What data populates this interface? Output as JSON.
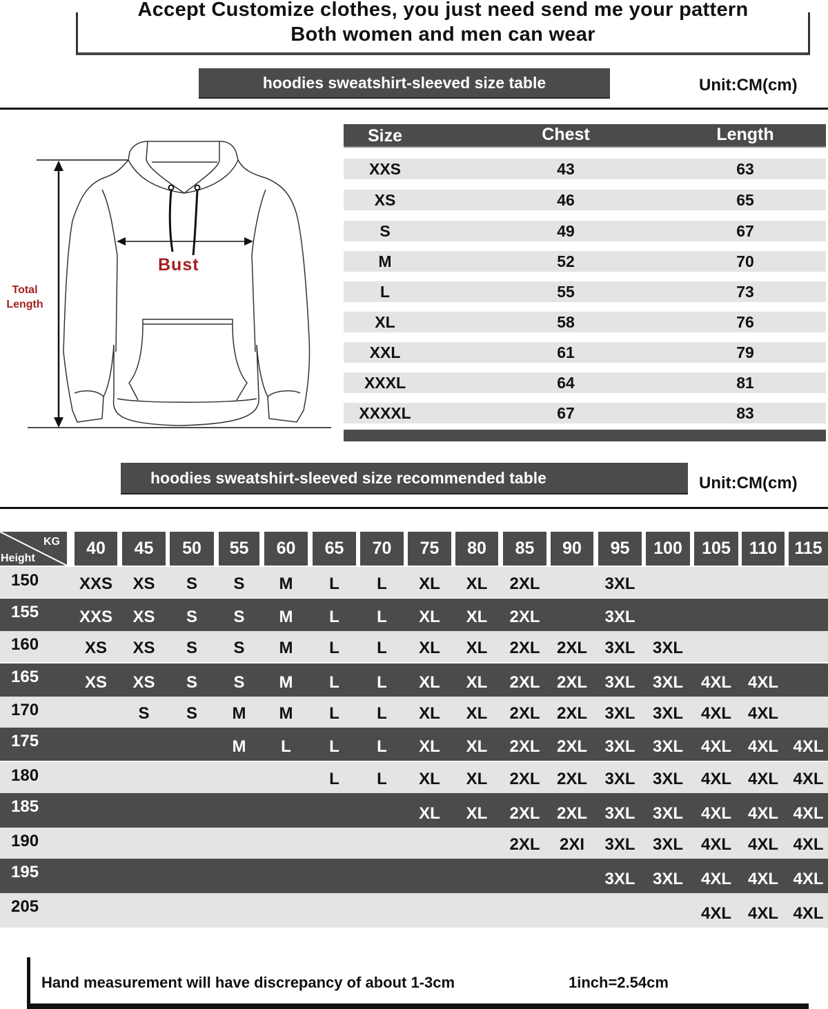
{
  "header": {
    "line1": "Accept Customize clothes, you just need send me your pattern",
    "line2": "Both women and men can wear"
  },
  "size_table": {
    "title": "hoodies sweatshirt-sleeved size  table",
    "unit": "Unit:CM(cm)",
    "columns": [
      "Size",
      "Chest",
      "Length"
    ],
    "rows": [
      [
        "XXS",
        "43",
        "63"
      ],
      [
        "XS",
        "46",
        "65"
      ],
      [
        "S",
        "49",
        "67"
      ],
      [
        "M",
        "52",
        "70"
      ],
      [
        "L",
        "55",
        "73"
      ],
      [
        "XL",
        "58",
        "76"
      ],
      [
        "XXL",
        "61",
        "79"
      ],
      [
        "XXXL",
        "64",
        "81"
      ],
      [
        "XXXXL",
        "67",
        "83"
      ]
    ]
  },
  "diagram": {
    "bust_label": "Bust",
    "total_label_1": "Total",
    "total_label_2": "Length",
    "label_color": "#a52020"
  },
  "recommended_table": {
    "title": "hoodies sweatshirt-sleeved size recommended table",
    "unit": "Unit:CM(cm)",
    "corner_kg": "KG",
    "corner_height": "Height",
    "weights": [
      "40",
      "45",
      "50",
      "55",
      "60",
      "65",
      "70",
      "75",
      "80",
      "85",
      "90",
      "95",
      "100",
      "105",
      "110",
      "115"
    ],
    "rows": [
      {
        "height": "150",
        "sizes": [
          "XXS",
          "XS",
          "S",
          "S",
          "M",
          "L",
          "L",
          "XL",
          "XL",
          "2XL",
          "",
          "3XL",
          "",
          "",
          "",
          ""
        ]
      },
      {
        "height": "155",
        "sizes": [
          "XXS",
          "XS",
          "S",
          "S",
          "M",
          "L",
          "L",
          "XL",
          "XL",
          "2XL",
          "",
          "3XL",
          "",
          "",
          "",
          ""
        ]
      },
      {
        "height": "160",
        "sizes": [
          "XS",
          "XS",
          "S",
          "S",
          "M",
          "L",
          "L",
          "XL",
          "XL",
          "2XL",
          "2XL",
          "3XL",
          "3XL",
          "",
          "",
          ""
        ]
      },
      {
        "height": "165",
        "sizes": [
          "XS",
          "XS",
          "S",
          "S",
          "M",
          "L",
          "L",
          "XL",
          "XL",
          "2XL",
          "2XL",
          "3XL",
          "3XL",
          "4XL",
          "4XL",
          ""
        ]
      },
      {
        "height": "170",
        "sizes": [
          "",
          "S",
          "S",
          "M",
          "M",
          "L",
          "L",
          "XL",
          "XL",
          "2XL",
          "2XL",
          "3XL",
          "3XL",
          "4XL",
          "4XL",
          ""
        ]
      },
      {
        "height": "175",
        "sizes": [
          "",
          "",
          "",
          "M",
          "L",
          "L",
          "L",
          "XL",
          "XL",
          "2XL",
          "2XL",
          "3XL",
          "3XL",
          "4XL",
          "4XL",
          "4XL"
        ]
      },
      {
        "height": "180",
        "sizes": [
          "",
          "",
          "",
          "",
          "",
          "L",
          "L",
          "XL",
          "XL",
          "2XL",
          "2XL",
          "3XL",
          "3XL",
          "4XL",
          "4XL",
          "4XL"
        ]
      },
      {
        "height": "185",
        "sizes": [
          "",
          "",
          "",
          "",
          "",
          "",
          "",
          "XL",
          "XL",
          "2XL",
          "2XL",
          "3XL",
          "3XL",
          "4XL",
          "4XL",
          "4XL"
        ]
      },
      {
        "height": "190",
        "sizes": [
          "",
          "",
          "",
          "",
          "",
          "",
          "",
          "",
          "",
          "2XL",
          "2XI",
          "3XL",
          "3XL",
          "4XL",
          "4XL",
          "4XL"
        ]
      },
      {
        "height": "195",
        "sizes": [
          "",
          "",
          "",
          "",
          "",
          "",
          "",
          "",
          "",
          "",
          "",
          "3XL",
          "3XL",
          "4XL",
          "4XL",
          "4XL"
        ]
      },
      {
        "height": "205",
        "sizes": [
          "",
          "",
          "",
          "",
          "",
          "",
          "",
          "",
          "",
          "",
          "",
          "",
          "",
          "4XL",
          "4XL",
          "4XL"
        ]
      }
    ]
  },
  "footer": {
    "note": "Hand measurement will have discrepancy of about  1-3cm",
    "conversion": "1inch=2.54cm"
  },
  "colors": {
    "banner": "#4b4b4b",
    "row_light": "#e4e4e4",
    "accent_red": "#a52020"
  }
}
